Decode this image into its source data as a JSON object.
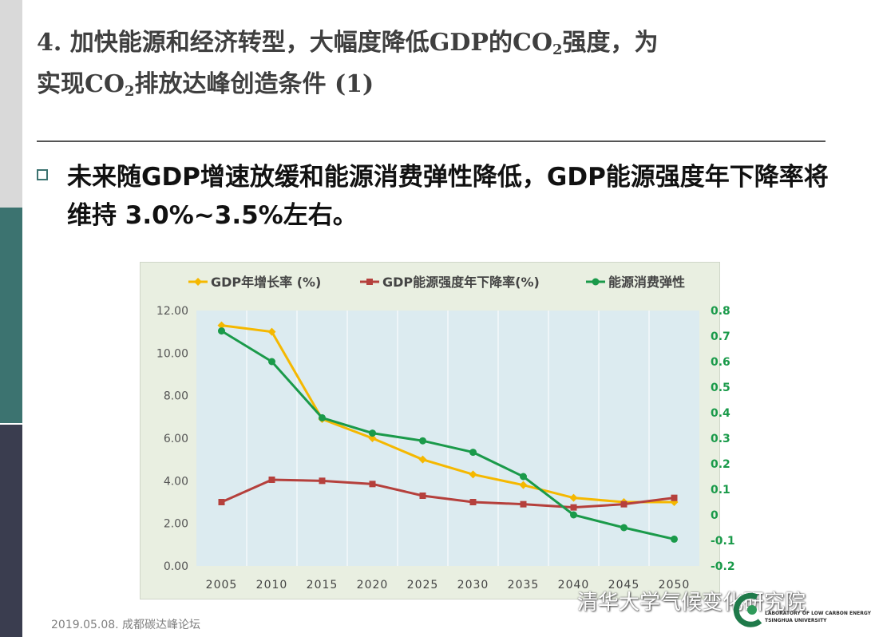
{
  "slide": {
    "title_part1": "4. 加快能源和经济转型，大幅度降低GDP的CO",
    "title_sub1": "2",
    "title_part2": "强度，为",
    "title_part3": "实现CO",
    "title_sub2": "2",
    "title_part4": "排放达峰创造条件 (1)",
    "subtitle": "未来随GDP增速放缓和能源消费弹性降低，GDP能源强度年下降率将维持 3.0%~3.5%左右。",
    "footer": "2019.05.08. 成都碳达峰论坛",
    "watermark": "清华大学气候变化研究院",
    "logo_line1": "LABORATORY OF LOW CARBON ENERGY",
    "logo_line2": "TSINGHUA UNIVERSITY"
  },
  "colors": {
    "title": "#3f3f3f",
    "accent": "#3c7370",
    "gdp_growth": "#f5b800",
    "intensity": "#b5403c",
    "elasticity": "#1a9a4a",
    "plot_bg": "#dcebf0"
  },
  "chart_data": {
    "type": "line",
    "categories": [
      "2005",
      "2010",
      "2015",
      "2020",
      "2025",
      "2030",
      "2035",
      "2040",
      "2045",
      "2050"
    ],
    "series": [
      {
        "name": "GDP年增长率 (%)",
        "axis": "left",
        "values": [
          11.3,
          11.0,
          6.9,
          6.0,
          5.0,
          4.3,
          3.8,
          3.2,
          3.0,
          3.0
        ]
      },
      {
        "name": "GDP能源强度年下降率(%)",
        "axis": "left",
        "values": [
          3.0,
          4.05,
          4.0,
          3.85,
          3.3,
          3.0,
          2.9,
          2.75,
          2.9,
          3.2
        ]
      },
      {
        "name": "能源消费弹性",
        "axis": "right",
        "values": [
          0.72,
          0.6,
          0.38,
          0.32,
          0.29,
          0.245,
          0.15,
          0.0,
          -0.05,
          -0.095
        ]
      }
    ],
    "y_left": {
      "min": 0,
      "max": 12,
      "ticks": [
        "0.00",
        "2.00",
        "4.00",
        "6.00",
        "8.00",
        "10.00",
        "12.00"
      ]
    },
    "y_right": {
      "min": -0.2,
      "max": 0.8,
      "ticks": [
        "-0.2",
        "-0.1",
        "0",
        "0.1",
        "0.2",
        "0.3",
        "0.4",
        "0.5",
        "0.6",
        "0.7",
        "0.8"
      ]
    },
    "legend_position": "top"
  }
}
